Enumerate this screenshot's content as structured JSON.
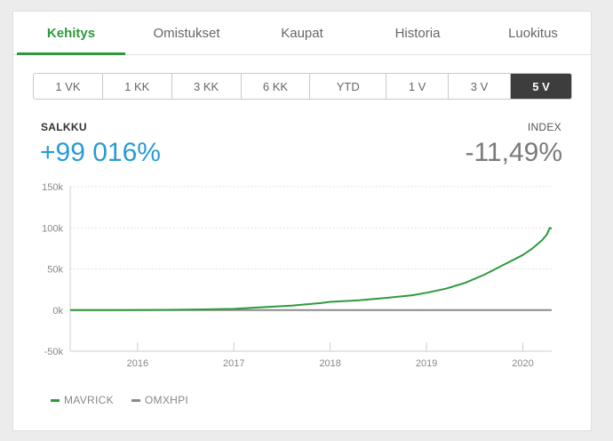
{
  "tabs": [
    {
      "label": "Kehitys",
      "active": true
    },
    {
      "label": "Omistukset",
      "active": false
    },
    {
      "label": "Kaupat",
      "active": false
    },
    {
      "label": "Historia",
      "active": false
    },
    {
      "label": "Luokitus",
      "active": false
    }
  ],
  "periods": [
    {
      "label": "1 VK",
      "active": false
    },
    {
      "label": "1 KK",
      "active": false
    },
    {
      "label": "3 KK",
      "active": false
    },
    {
      "label": "6 KK",
      "active": false
    },
    {
      "label": "YTD",
      "active": false
    },
    {
      "label": "1 V",
      "active": false
    },
    {
      "label": "3 V",
      "active": false
    },
    {
      "label": "5 V",
      "active": true
    }
  ],
  "summary": {
    "portfolio_label": "SALKKU",
    "portfolio_value": "+99 016%",
    "index_label": "INDEX",
    "index_value": "-11,49%"
  },
  "colors": {
    "accent_green": "#2e9a3c",
    "portfolio_blue": "#2a9ad6",
    "index_gray": "#7a7a7a"
  },
  "chart_data": {
    "type": "line",
    "y_ticks": [
      "150k",
      "100k",
      "50k",
      "0k",
      "-50k"
    ],
    "ylim": [
      -50000,
      150000
    ],
    "x_ticks": [
      {
        "label": "2016",
        "x": 2016.0
      },
      {
        "label": "2017",
        "x": 2017.0
      },
      {
        "label": "2018",
        "x": 2018.0
      },
      {
        "label": "2019",
        "x": 2019.0
      },
      {
        "label": "2020",
        "x": 2020.0
      }
    ],
    "xlim": [
      2015.3,
      2020.3
    ],
    "grid": "horizontal-dashed",
    "legend_position": "bottom-left",
    "series": [
      {
        "name": "MAVRICK",
        "color": "#2e9a3c",
        "points": [
          [
            2015.3,
            0
          ],
          [
            2015.8,
            100
          ],
          [
            2016.3,
            300
          ],
          [
            2016.7,
            800
          ],
          [
            2017.0,
            1500
          ],
          [
            2017.3,
            3500
          ],
          [
            2017.6,
            5500
          ],
          [
            2017.9,
            8500
          ],
          [
            2018.0,
            10000
          ],
          [
            2018.3,
            12000
          ],
          [
            2018.6,
            15000
          ],
          [
            2018.85,
            18000
          ],
          [
            2019.0,
            21000
          ],
          [
            2019.2,
            26000
          ],
          [
            2019.4,
            33000
          ],
          [
            2019.6,
            43000
          ],
          [
            2019.8,
            55000
          ],
          [
            2020.0,
            67000
          ],
          [
            2020.1,
            75000
          ],
          [
            2020.2,
            85000
          ],
          [
            2020.25,
            92000
          ],
          [
            2020.28,
            100000
          ],
          [
            2020.3,
            99016
          ]
        ]
      },
      {
        "name": "OMXHPI",
        "color": "#8a8a8a",
        "points": [
          [
            2015.3,
            0
          ],
          [
            2016.0,
            -5
          ],
          [
            2017.0,
            5
          ],
          [
            2018.0,
            8
          ],
          [
            2019.0,
            -3
          ],
          [
            2020.0,
            6
          ],
          [
            2020.3,
            -11.49
          ]
        ]
      }
    ]
  }
}
